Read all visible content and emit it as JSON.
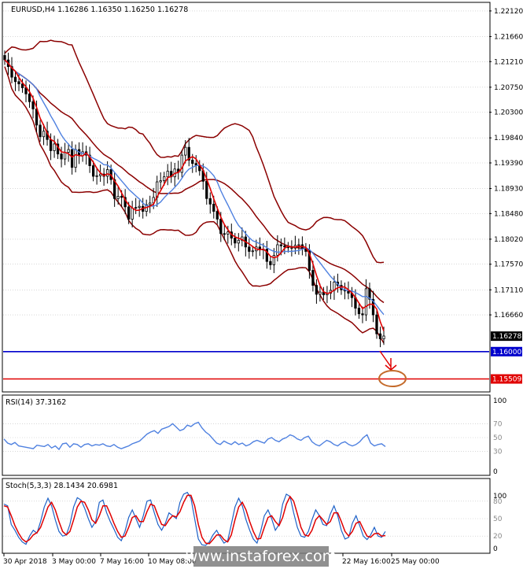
{
  "chart_data": [
    {
      "type": "candlestick",
      "symbol_line": "EURUSD,H4  1.16286 1.16350 1.16250 1.16278",
      "y_ticks": [
        "1.22120",
        "1.21660",
        "1.21210",
        "1.20750",
        "1.20300",
        "1.19840",
        "1.19390",
        "1.18930",
        "1.18480",
        "1.18020",
        "1.17570",
        "1.17110",
        "1.16660"
      ],
      "ylim": [
        1.1529,
        1.2226
      ],
      "current_price": "1.16278",
      "levels": [
        {
          "label": "1.16000",
          "value": 1.16,
          "color": "#0000cc"
        },
        {
          "label": "1.15509",
          "value": 1.15509,
          "color": "#e00000"
        }
      ],
      "close": [
        1.2124,
        1.2112,
        1.2093,
        1.2085,
        1.2081,
        1.2074,
        1.2063,
        1.2049,
        1.2036,
        1.2007,
        1.1986,
        1.1996,
        1.1981,
        1.1961,
        1.1973,
        1.1955,
        1.1946,
        1.1958,
        1.1963,
        1.1931,
        1.1963,
        1.1952,
        1.1959,
        1.1953,
        1.1934,
        1.1915,
        1.1916,
        1.1919,
        1.1915,
        1.1927,
        1.1909,
        1.1875,
        1.1879,
        1.1877,
        1.186,
        1.1838,
        1.1858,
        1.1859,
        1.1861,
        1.1852,
        1.1864,
        1.1867,
        1.1877,
        1.1905,
        1.1907,
        1.1914,
        1.1924,
        1.1914,
        1.1928,
        1.1922,
        1.1953,
        1.1967,
        1.1944,
        1.1938,
        1.1935,
        1.1925,
        1.1906,
        1.1875,
        1.1865,
        1.1852,
        1.1838,
        1.1812,
        1.1811,
        1.1815,
        1.1804,
        1.1795,
        1.18,
        1.1806,
        1.1788,
        1.178,
        1.1781,
        1.1788,
        1.1783,
        1.1784,
        1.1762,
        1.1756,
        1.1773,
        1.1792,
        1.179,
        1.1788,
        1.1787,
        1.1786,
        1.1791,
        1.1792,
        1.1786,
        1.178,
        1.1746,
        1.1719,
        1.1703,
        1.1707,
        1.1702,
        1.1705,
        1.171,
        1.1725,
        1.1719,
        1.1711,
        1.1709,
        1.1705,
        1.1697,
        1.1678,
        1.1668,
        1.1666,
        1.1713,
        1.1694,
        1.1666,
        1.1632,
        1.1623,
        1.1628
      ],
      "series": [
        {
          "name": "",
          "color": "#8b0000"
        },
        {
          "name": "",
          "color": "#e00000"
        },
        {
          "name": "",
          "color": "#4f81e0"
        }
      ]
    },
    {
      "type": "line",
      "title": "RSI(14) 37.3162",
      "levels": [
        "70",
        "50",
        "30"
      ],
      "scale": [
        "100",
        "0"
      ],
      "ylim": [
        0,
        100
      ],
      "values": [
        48,
        42,
        40,
        43,
        38,
        37,
        36,
        35,
        34,
        39,
        38,
        37,
        40,
        35,
        38,
        33,
        41,
        42,
        36,
        41,
        40,
        36,
        40,
        41,
        38,
        40,
        39,
        41,
        38,
        37,
        40,
        36,
        34,
        36,
        38,
        41,
        43,
        45,
        50,
        55,
        58,
        60,
        56,
        62,
        64,
        66,
        70,
        65,
        60,
        62,
        68,
        66,
        70,
        72,
        64,
        58,
        54,
        48,
        42,
        40,
        45,
        42,
        40,
        44,
        40,
        42,
        38,
        40,
        44,
        46,
        44,
        42,
        48,
        50,
        46,
        44,
        48,
        50,
        54,
        52,
        48,
        46,
        50,
        52,
        44,
        40,
        38,
        42,
        46,
        44,
        40,
        38,
        42,
        44,
        40,
        38,
        40,
        44,
        50,
        54,
        42,
        38,
        40,
        41,
        37
      ]
    },
    {
      "type": "line",
      "title": "Stoch(5,3,3) 28.1434 20.6981",
      "levels": [
        "80",
        "50",
        "20"
      ],
      "scale": [
        "100",
        "0"
      ],
      "ylim": [
        0,
        100
      ],
      "series": [
        {
          "name": "",
          "color": "#1e62c8",
          "values": [
            75,
            72,
            40,
            30,
            18,
            10,
            6,
            20,
            30,
            25,
            45,
            70,
            85,
            72,
            48,
            28,
            20,
            22,
            40,
            70,
            86,
            82,
            68,
            50,
            35,
            45,
            78,
            82,
            60,
            45,
            32,
            18,
            12,
            28,
            52,
            65,
            50,
            35,
            55,
            80,
            82,
            60,
            40,
            30,
            42,
            60,
            55,
            50,
            78,
            92,
            95,
            85,
            50,
            15,
            5,
            4,
            10,
            22,
            30,
            18,
            8,
            12,
            40,
            70,
            85,
            72,
            48,
            30,
            15,
            8,
            28,
            55,
            65,
            50,
            30,
            40,
            75,
            92,
            88,
            60,
            35,
            20,
            18,
            28,
            48,
            65,
            55,
            40,
            38,
            58,
            72,
            55,
            30,
            15,
            18,
            42,
            55,
            38,
            20,
            14,
            22,
            35,
            20,
            18,
            28
          ]
        },
        {
          "name": "",
          "color": "#e00000",
          "values": [
            72,
            70,
            55,
            38,
            25,
            15,
            10,
            14,
            22,
            26,
            35,
            52,
            70,
            78,
            65,
            45,
            28,
            22,
            28,
            48,
            70,
            80,
            78,
            65,
            48,
            42,
            55,
            72,
            72,
            58,
            42,
            28,
            18,
            20,
            35,
            52,
            55,
            45,
            45,
            62,
            75,
            72,
            55,
            40,
            38,
            48,
            55,
            53,
            62,
            78,
            90,
            90,
            72,
            40,
            18,
            8,
            7,
            14,
            22,
            22,
            14,
            10,
            22,
            48,
            70,
            78,
            65,
            45,
            28,
            15,
            16,
            35,
            52,
            55,
            45,
            38,
            52,
            75,
            88,
            80,
            58,
            35,
            22,
            20,
            30,
            48,
            55,
            48,
            40,
            45,
            60,
            60,
            45,
            28,
            20,
            28,
            42,
            45,
            32,
            20,
            18,
            24,
            25,
            20,
            21
          ]
        }
      ]
    }
  ],
  "x_labels": [
    "30 Apr 2018",
    "3 May 00:00",
    "7 May 16:00",
    "10 May 08:00",
    "",
    "",
    "",
    "22 May 16:00",
    "25 May 00:00"
  ],
  "watermark": "www.instaforex.com",
  "colors": {
    "background": "#ffffff",
    "grid": "#c0c0c0",
    "price_tag_bg": "#000000"
  }
}
